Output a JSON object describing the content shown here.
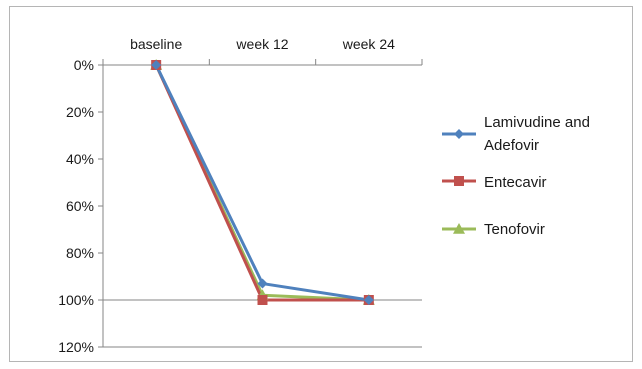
{
  "chart_data": {
    "type": "line",
    "title": "",
    "xlabel": "",
    "ylabel": "",
    "categories": [
      "baseline",
      "week 12",
      "week 24"
    ],
    "x_axis_position": "top",
    "y_axis_reversed": true,
    "ylim": [
      0,
      120
    ],
    "y_ticks": [
      "0%",
      "20%",
      "40%",
      "60%",
      "80%",
      "100%",
      "120%"
    ],
    "y_tick_values": [
      0,
      20,
      40,
      60,
      80,
      100,
      120
    ],
    "grid": false,
    "legend_position": "right",
    "series": [
      {
        "name_lines": [
          "Lamivudine and",
          "Adefovir"
        ],
        "values": [
          0,
          93,
          100
        ],
        "color": "#4f81bd",
        "marker": "diamond"
      },
      {
        "name_lines": [
          "Entecavir"
        ],
        "values": [
          0,
          100,
          100
        ],
        "color": "#c0504d",
        "marker": "square"
      },
      {
        "name_lines": [
          "Tenofovir"
        ],
        "values": [
          0,
          98,
          100
        ],
        "color": "#9bbb59",
        "marker": "triangle"
      }
    ]
  }
}
